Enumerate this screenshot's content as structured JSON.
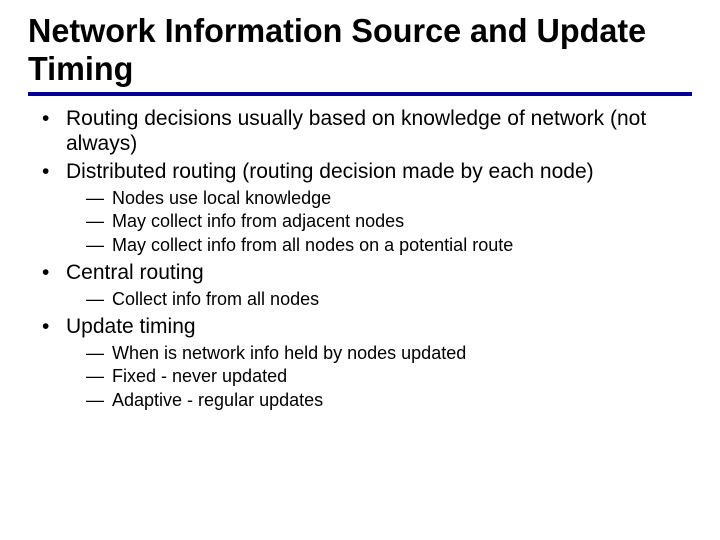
{
  "title": "Network Information Source and Update Timing",
  "rule_color": "#000099",
  "background_color": "#ffffff",
  "text_color": "#000000",
  "title_font": "Arial Black / Impact style",
  "body_font": "Verdana",
  "title_fontsize": 33,
  "body_fontsize_lvl1": 21,
  "body_fontsize_lvl2": 18,
  "bullets": [
    {
      "text": "Routing decisions usually based on knowledge of network (not always)",
      "sub": []
    },
    {
      "text": "Distributed routing (routing decision made by each node)",
      "sub": [
        "Nodes use local knowledge",
        "May collect info from adjacent nodes",
        "May collect info from all nodes on a potential route"
      ]
    },
    {
      "text": "Central routing",
      "sub": [
        "Collect info from all nodes"
      ]
    },
    {
      "text": "Update timing",
      "sub": [
        "When is network info held by nodes updated",
        "Fixed - never updated",
        "Adaptive - regular updates"
      ]
    }
  ]
}
